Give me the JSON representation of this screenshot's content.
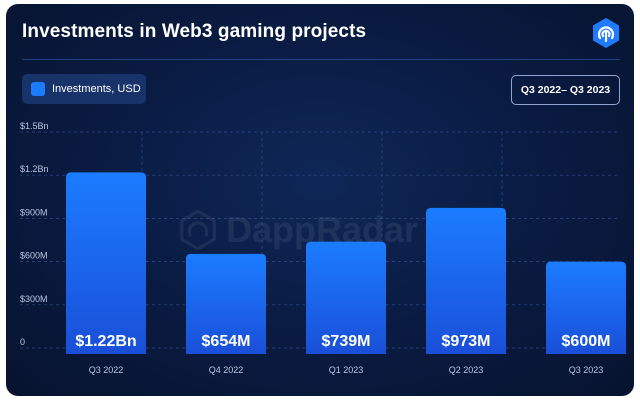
{
  "header": {
    "title": "Investments in Web3 gaming projects",
    "logo_icon": "dappradar-logo-icon"
  },
  "legend": {
    "label": "Investments, USD",
    "swatch_color": "#1b7cff"
  },
  "range_button": {
    "label": "Q3 2022– Q3 2023"
  },
  "watermark": {
    "text": "DappRadar"
  },
  "chart_data": {
    "type": "bar",
    "title": "Investments in Web3 gaming projects",
    "categories": [
      "Q3 2022",
      "Q4 2022",
      "Q1 2023",
      "Q2 2023",
      "Q3 2023"
    ],
    "series": [
      {
        "name": "Investments, USD",
        "values": [
          1220000000,
          654000000,
          739000000,
          973000000,
          600000000
        ]
      }
    ],
    "data_labels": [
      "$1.22Bn",
      "$654M",
      "$739M",
      "$973M",
      "$600M"
    ],
    "yticks": [
      {
        "value": 0,
        "label": "0"
      },
      {
        "value": 300000000,
        "label": "$300M"
      },
      {
        "value": 600000000,
        "label": "$600M"
      },
      {
        "value": 900000000,
        "label": "$900M"
      },
      {
        "value": 1200000000,
        "label": "$1.2Bn"
      },
      {
        "value": 1500000000,
        "label": "$1.5Bn"
      }
    ],
    "ylim": [
      0,
      1500000000
    ],
    "grid": true,
    "legend_position": "top-left",
    "bar_color": "#1b7cff"
  }
}
